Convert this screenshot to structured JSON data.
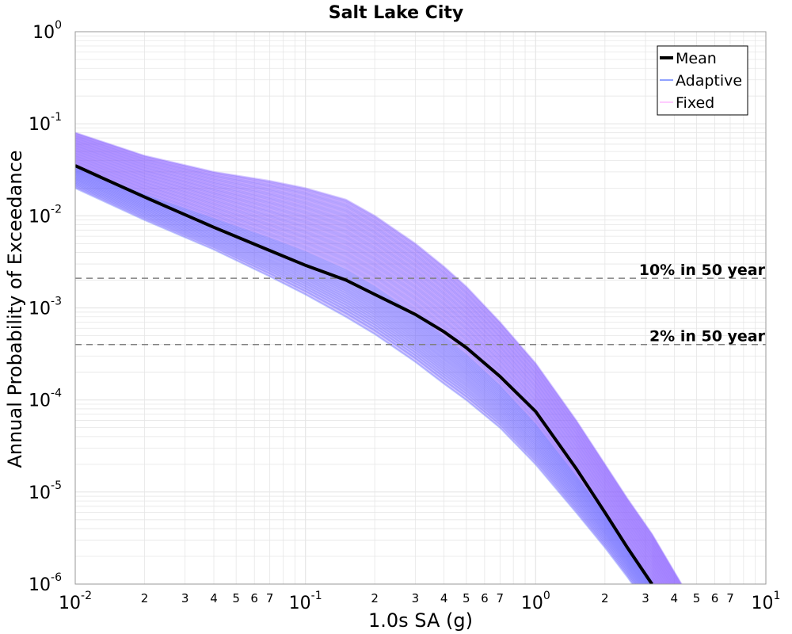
{
  "chart_data": {
    "type": "line",
    "title": "Salt Lake City",
    "xlabel": "1.0s SA (g)",
    "ylabel": "Annual Probability of Exceedance",
    "x_scale": "log",
    "y_scale": "log",
    "xlim": [
      0.01,
      10
    ],
    "ylim": [
      1e-06,
      1
    ],
    "grid": true,
    "legend_position": "top-right",
    "x_ticks_major": [
      {
        "base": "10",
        "exp": "-2",
        "value": 0.01
      },
      {
        "base": "10",
        "exp": "-1",
        "value": 0.1
      },
      {
        "base": "10",
        "exp": "0",
        "value": 1
      },
      {
        "base": "10",
        "exp": "1",
        "value": 10
      }
    ],
    "x_ticks_minor": [
      {
        "label": "2",
        "value": 0.02
      },
      {
        "label": "3",
        "value": 0.03
      },
      {
        "label": "4",
        "value": 0.04
      },
      {
        "label": "5",
        "value": 0.05
      },
      {
        "label": "6",
        "value": 0.06
      },
      {
        "label": "7",
        "value": 0.07
      },
      {
        "label": "2",
        "value": 0.2
      },
      {
        "label": "3",
        "value": 0.3
      },
      {
        "label": "4",
        "value": 0.4
      },
      {
        "label": "5",
        "value": 0.5
      },
      {
        "label": "6",
        "value": 0.6
      },
      {
        "label": "7",
        "value": 0.7
      },
      {
        "label": "2",
        "value": 2
      },
      {
        "label": "3",
        "value": 3
      },
      {
        "label": "4",
        "value": 4
      },
      {
        "label": "5",
        "value": 5
      },
      {
        "label": "6",
        "value": 6
      },
      {
        "label": "7",
        "value": 7
      }
    ],
    "y_ticks_major": [
      {
        "base": "10",
        "exp": "0",
        "value": 1
      },
      {
        "base": "10",
        "exp": "-1",
        "value": 0.1
      },
      {
        "base": "10",
        "exp": "-2",
        "value": 0.01
      },
      {
        "base": "10",
        "exp": "-3",
        "value": 0.001
      },
      {
        "base": "10",
        "exp": "-4",
        "value": 0.0001
      },
      {
        "base": "10",
        "exp": "-5",
        "value": 1e-05
      },
      {
        "base": "10",
        "exp": "-6",
        "value": 1e-06
      }
    ],
    "reference_lines": [
      {
        "label": "10% in 50 year",
        "y": 0.0021
      },
      {
        "label": "2% in 50 year",
        "y": 0.0004
      }
    ],
    "series": [
      {
        "name": "Mean",
        "color": "#000000",
        "x": [
          0.01,
          0.02,
          0.04,
          0.07,
          0.1,
          0.15,
          0.2,
          0.3,
          0.4,
          0.5,
          0.7,
          1.0,
          1.5,
          2.0,
          2.5,
          3.2
        ],
        "y": [
          0.035,
          0.016,
          0.0075,
          0.0042,
          0.0029,
          0.002,
          0.0014,
          0.00085,
          0.00055,
          0.00037,
          0.00018,
          7.5e-05,
          1.8e-05,
          6e-06,
          2.5e-06,
          1e-06
        ]
      },
      {
        "name": "Adaptive",
        "color": "#2244ff",
        "x": [
          0.01,
          0.02,
          0.04,
          0.07,
          0.1,
          0.15,
          0.2,
          0.3,
          0.4,
          0.5,
          0.7,
          1.0,
          1.5,
          2.0,
          2.5,
          3.2,
          4.3
        ],
        "y_low": [
          0.02,
          0.009,
          0.0043,
          0.0022,
          0.0014,
          0.0008,
          0.00052,
          0.00026,
          0.00015,
          0.0001,
          5e-05,
          2e-05,
          6e-06,
          2.5e-06,
          1.2e-06,
          5e-07,
          1.5e-07
        ],
        "y_high": [
          0.08,
          0.045,
          0.03,
          0.024,
          0.02,
          0.015,
          0.01,
          0.005,
          0.0028,
          0.0017,
          0.0007,
          0.00025,
          6e-05,
          2e-05,
          8.5e-06,
          3.5e-06,
          1e-06
        ]
      },
      {
        "name": "Fixed",
        "color": "#ff99ff"
      }
    ]
  },
  "colors": {
    "adaptive_band": "#3a52ff",
    "fixed_band": "#c27cff",
    "grid": "#e6e6e6",
    "reference_line": "#808080"
  }
}
